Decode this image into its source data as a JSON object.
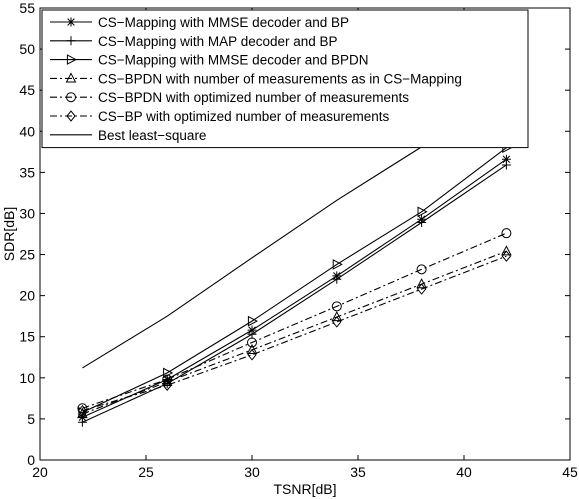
{
  "chart_data": {
    "type": "line",
    "xlabel": "TSNR[dB]",
    "ylabel": "SDR[dB]",
    "xlim": [
      20,
      45
    ],
    "ylim": [
      0,
      55
    ],
    "xticks": [
      "20",
      "25",
      "30",
      "35",
      "40",
      "45"
    ],
    "yticks": [
      "0",
      "5",
      "10",
      "15",
      "20",
      "25",
      "30",
      "35",
      "40",
      "45",
      "50",
      "55"
    ],
    "grid": false,
    "legend_position": "top-left",
    "x": [
      22,
      26,
      30,
      34,
      38,
      42
    ],
    "series": [
      {
        "name": "CS−Mapping with MMSE decoder and BP",
        "marker": "star",
        "line": "solid",
        "values": [
          5.2,
          9.8,
          15.8,
          22.4,
          29.3,
          36.6
        ]
      },
      {
        "name": "CS−Mapping with MAP decoder and BP",
        "marker": "plus",
        "line": "solid",
        "values": [
          4.6,
          9.3,
          15.3,
          22.0,
          28.9,
          35.9
        ]
      },
      {
        "name": "CS−Mapping with MMSE decoder and BPDN",
        "marker": "triangle-right",
        "line": "solid",
        "values": [
          5.8,
          10.6,
          16.9,
          23.8,
          30.2,
          38.0
        ]
      },
      {
        "name": "CS−BPDN with number of measurements as in CS−Mapping",
        "marker": "triangle-up",
        "line": "dashdot",
        "values": [
          5.6,
          9.5,
          13.4,
          17.4,
          21.4,
          25.4
        ]
      },
      {
        "name": "CS−BPDN with optimized number of measurements",
        "marker": "circle",
        "line": "dashdot",
        "values": [
          6.3,
          9.8,
          14.3,
          18.7,
          23.2,
          27.6
        ]
      },
      {
        "name": "CS−BP with optimized number of measurements",
        "marker": "diamond",
        "line": "dashdot",
        "values": [
          6.0,
          9.1,
          12.8,
          16.8,
          20.8,
          24.8
        ]
      },
      {
        "name": "Best least−square",
        "marker": "none",
        "line": "solid",
        "values": [
          11.2,
          17.5,
          24.6,
          31.6,
          38.1,
          45.9
        ]
      }
    ]
  }
}
